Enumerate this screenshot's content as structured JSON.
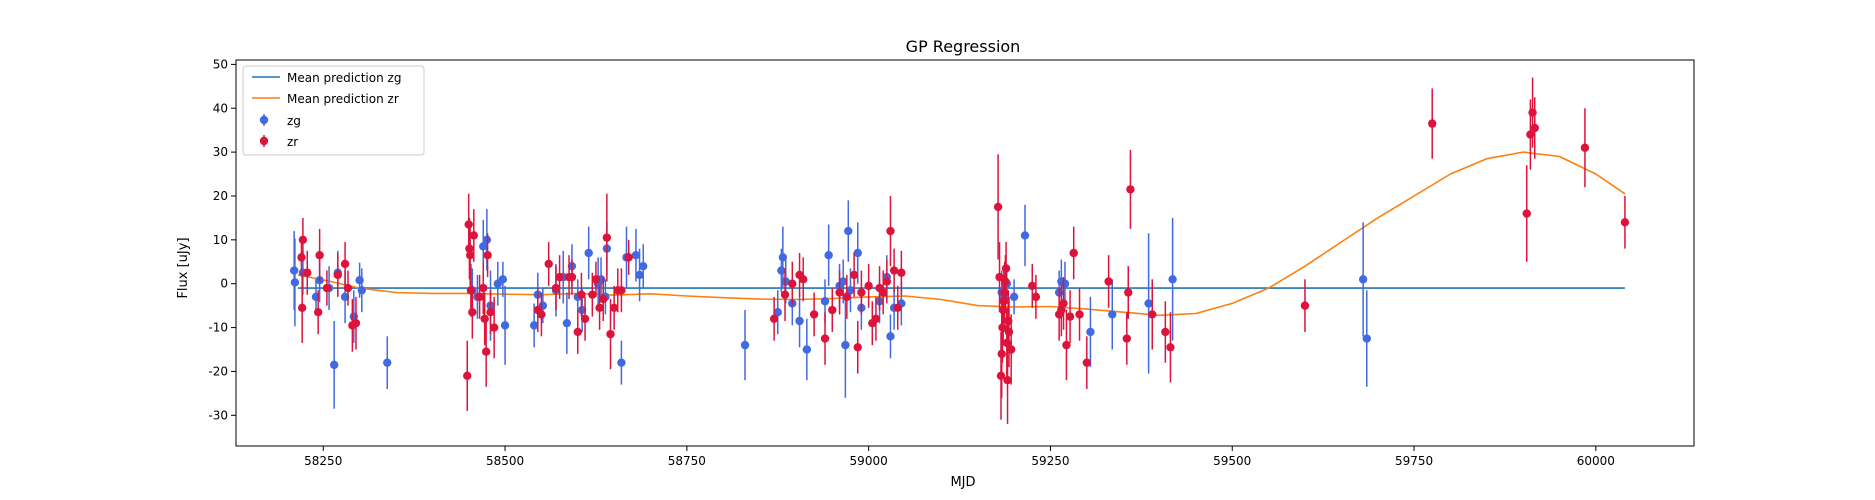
{
  "chart_data": {
    "type": "scatter",
    "title": "GP Regression",
    "xlabel": "MJD",
    "ylabel": "Flux [uJy]",
    "xlim": [
      58130,
      60135
    ],
    "ylim": [
      -37,
      51
    ],
    "xticks": [
      58250,
      58500,
      58750,
      59000,
      59250,
      59500,
      59750,
      60000
    ],
    "yticks": [
      -30,
      -20,
      -10,
      0,
      10,
      20,
      30,
      40,
      50
    ],
    "grid": false,
    "legend_position": "top-left",
    "legend": [
      "Mean prediction zg",
      "Mean prediction zr",
      "zg",
      "zr"
    ],
    "colors": {
      "mean_zg": "#1f77b4",
      "mean_zr": "#ff7f0e",
      "zg": "#4169e1",
      "zr": "#dc143c"
    },
    "series": [
      {
        "name": "Mean prediction zg",
        "kind": "line",
        "x": [
          58215,
          60040
        ],
        "y": [
          -1,
          -1
        ]
      },
      {
        "name": "Mean prediction zr",
        "kind": "line",
        "x": [
          58215,
          58260,
          58300,
          58350,
          58400,
          58450,
          58500,
          58550,
          58600,
          58650,
          58700,
          58750,
          58800,
          58850,
          58900,
          58950,
          59000,
          59050,
          59100,
          59150,
          59200,
          59250,
          59300,
          59350,
          59400,
          59450,
          59500,
          59550,
          59600,
          59650,
          59700,
          59750,
          59800,
          59850,
          59900,
          59950,
          60000,
          60040
        ],
        "y": [
          2,
          0.5,
          -1,
          -2,
          -2.2,
          -2.2,
          -2.4,
          -2.5,
          -2.2,
          -2.6,
          -2.3,
          -2.8,
          -3.2,
          -3.5,
          -3.6,
          -3.4,
          -3.0,
          -2.8,
          -3.6,
          -5,
          -5.3,
          -5.2,
          -5.8,
          -6.5,
          -7.2,
          -6.8,
          -4.5,
          -1,
          4,
          9.5,
          15,
          20,
          25,
          28.5,
          30,
          29,
          25,
          20.5
        ]
      },
      {
        "name": "zg",
        "kind": "errorbar",
        "points": [
          [
            58210,
            3,
            9
          ],
          [
            58211,
            0.3,
            10
          ],
          [
            58222,
            2.5,
            5
          ],
          [
            58240,
            -3,
            4
          ],
          [
            58245,
            0.8,
            5
          ],
          [
            58258,
            -1,
            5
          ],
          [
            58265,
            -18.5,
            10
          ],
          [
            58270,
            2.5,
            5
          ],
          [
            58280,
            -3,
            6
          ],
          [
            58292,
            -7.5,
            6
          ],
          [
            58300,
            0.8,
            4
          ],
          [
            58303,
            -1.5,
            5
          ],
          [
            58338,
            -18,
            6
          ],
          [
            58455,
            -1.5,
            5
          ],
          [
            58462,
            -3,
            5
          ],
          [
            58470,
            8.5,
            6
          ],
          [
            58475,
            10,
            7
          ],
          [
            58480,
            -5,
            8
          ],
          [
            58490,
            0,
            5
          ],
          [
            58497,
            1,
            4
          ],
          [
            58500,
            -9.5,
            9
          ],
          [
            58540,
            -9.5,
            5
          ],
          [
            58545,
            -2.5,
            5
          ],
          [
            58552,
            -5,
            4
          ],
          [
            58570,
            -1.5,
            6
          ],
          [
            58580,
            1.5,
            6
          ],
          [
            58585,
            -9,
            7
          ],
          [
            58592,
            4,
            5
          ],
          [
            58600,
            -3,
            4
          ],
          [
            58606,
            -6,
            5
          ],
          [
            58615,
            7,
            6
          ],
          [
            58628,
            0,
            6
          ],
          [
            58632,
            1,
            5
          ],
          [
            58638,
            -3,
            4
          ],
          [
            58640,
            8,
            6
          ],
          [
            58660,
            -18,
            5
          ],
          [
            58667,
            6,
            7
          ],
          [
            58680,
            6.5,
            6
          ],
          [
            58685,
            2,
            6
          ],
          [
            58690,
            4,
            5
          ],
          [
            58830,
            -14,
            8
          ],
          [
            58875,
            -6.5,
            5
          ],
          [
            58880,
            3,
            5
          ],
          [
            58882,
            6,
            7
          ],
          [
            58886,
            0.5,
            5
          ],
          [
            58895,
            -4.5,
            5
          ],
          [
            58905,
            -8.5,
            6
          ],
          [
            58915,
            -15,
            7
          ],
          [
            58940,
            -4,
            5
          ],
          [
            58945,
            6.5,
            7
          ],
          [
            58960,
            -0.5,
            5
          ],
          [
            58965,
            0.5,
            5
          ],
          [
            58968,
            -14,
            12
          ],
          [
            58972,
            12,
            7
          ],
          [
            58975,
            -1.5,
            5
          ],
          [
            58985,
            7,
            7
          ],
          [
            58990,
            -5.5,
            5
          ],
          [
            59015,
            -4,
            5
          ],
          [
            59025,
            1.5,
            5
          ],
          [
            59030,
            -12,
            5
          ],
          [
            59035,
            -5.5,
            5
          ],
          [
            59045,
            -4.5,
            5
          ],
          [
            59183,
            -2,
            5
          ],
          [
            59186,
            -3.5,
            4
          ],
          [
            59190,
            0,
            4
          ],
          [
            59200,
            -3,
            4
          ],
          [
            59215,
            11,
            7
          ],
          [
            59262,
            -2,
            5
          ],
          [
            59265,
            0.5,
            5
          ],
          [
            59270,
            0,
            5
          ],
          [
            59305,
            -11,
            8
          ],
          [
            59335,
            -7,
            8
          ],
          [
            59385,
            -4.5,
            16
          ],
          [
            59418,
            1,
            14
          ],
          [
            59680,
            1,
            13
          ],
          [
            59685,
            -12.5,
            11
          ]
        ]
      },
      {
        "name": "zr",
        "kind": "errorbar",
        "points": [
          [
            58220,
            6,
            4
          ],
          [
            58221,
            -5.5,
            8
          ],
          [
            58222,
            10,
            5
          ],
          [
            58228,
            2.5,
            5
          ],
          [
            58243,
            -6.5,
            5
          ],
          [
            58245,
            6.5,
            6
          ],
          [
            58255,
            -1,
            4
          ],
          [
            58270,
            2,
            5
          ],
          [
            58280,
            4.5,
            5
          ],
          [
            58284,
            -1,
            4
          ],
          [
            58290,
            -9.5,
            6
          ],
          [
            58295,
            -9,
            6
          ],
          [
            58448,
            -21,
            8
          ],
          [
            58450,
            13.5,
            7
          ],
          [
            58451,
            8,
            7
          ],
          [
            58452,
            6.5,
            7
          ],
          [
            58453,
            -1.5,
            6
          ],
          [
            58455,
            -6.5,
            6
          ],
          [
            58457,
            11,
            6
          ],
          [
            58465,
            -3,
            5
          ],
          [
            58470,
            -1,
            6
          ],
          [
            58472,
            -8,
            6
          ],
          [
            58474,
            -15.5,
            8
          ],
          [
            58476,
            6.5,
            5
          ],
          [
            58480,
            -6.5,
            5
          ],
          [
            58485,
            -10,
            7
          ],
          [
            58545,
            -6,
            5
          ],
          [
            58550,
            -7,
            5
          ],
          [
            58560,
            4.5,
            5
          ],
          [
            58570,
            -1,
            5
          ],
          [
            58575,
            1.5,
            5
          ],
          [
            58588,
            1.5,
            5
          ],
          [
            58592,
            1.5,
            4
          ],
          [
            58600,
            -11,
            5
          ],
          [
            58605,
            -2.5,
            5
          ],
          [
            58610,
            -8,
            5
          ],
          [
            58620,
            -2.5,
            5
          ],
          [
            58625,
            1,
            4
          ],
          [
            58630,
            -5.5,
            5
          ],
          [
            58635,
            -3.5,
            5
          ],
          [
            58640,
            10.5,
            10
          ],
          [
            58645,
            -11.5,
            8
          ],
          [
            58650,
            -5.5,
            5
          ],
          [
            58655,
            -1.5,
            5
          ],
          [
            58660,
            -1.5,
            5
          ],
          [
            58670,
            6,
            4
          ],
          [
            58870,
            -8,
            5
          ],
          [
            58885,
            -2.5,
            6
          ],
          [
            58895,
            0,
            5
          ],
          [
            58905,
            2,
            5
          ],
          [
            58910,
            1,
            5
          ],
          [
            58925,
            -7,
            5
          ],
          [
            58940,
            -12.5,
            6
          ],
          [
            58950,
            -6,
            5
          ],
          [
            58960,
            -2,
            5
          ],
          [
            58970,
            -3,
            5
          ],
          [
            58980,
            2,
            5
          ],
          [
            58985,
            -14.5,
            6
          ],
          [
            58990,
            -2,
            5
          ],
          [
            59000,
            -0.5,
            5
          ],
          [
            59005,
            -9,
            5
          ],
          [
            59010,
            -8,
            5
          ],
          [
            59015,
            -1,
            5
          ],
          [
            59020,
            -2,
            5
          ],
          [
            59025,
            0.5,
            5
          ],
          [
            59030,
            12,
            8
          ],
          [
            59035,
            3,
            5
          ],
          [
            59040,
            -5.5,
            5
          ],
          [
            59045,
            2.5,
            5
          ],
          [
            59178,
            17.5,
            12
          ],
          [
            59180,
            1.5,
            8
          ],
          [
            59182,
            -21,
            10
          ],
          [
            59183,
            -16,
            10
          ],
          [
            59184,
            -10,
            8
          ],
          [
            59185,
            -6,
            8
          ],
          [
            59186,
            -4,
            7
          ],
          [
            59187,
            -2,
            7
          ],
          [
            59188,
            0.5,
            6
          ],
          [
            59189,
            3.5,
            6
          ],
          [
            59190,
            -13.5,
            8
          ],
          [
            59191,
            -22,
            10
          ],
          [
            59192,
            -8.5,
            7
          ],
          [
            59193,
            -11,
            8
          ],
          [
            59196,
            -15,
            8
          ],
          [
            59225,
            -0.5,
            5
          ],
          [
            59230,
            -3,
            5
          ],
          [
            59262,
            -7,
            6
          ],
          [
            59265,
            -6,
            6
          ],
          [
            59268,
            -4.5,
            6
          ],
          [
            59272,
            -14,
            8
          ],
          [
            59277,
            -7.5,
            6
          ],
          [
            59282,
            7,
            6
          ],
          [
            59290,
            -7,
            6
          ],
          [
            59300,
            -18,
            6
          ],
          [
            59330,
            0.5,
            6
          ],
          [
            59355,
            -12.5,
            6
          ],
          [
            59357,
            -2,
            6
          ],
          [
            59360,
            21.5,
            9
          ],
          [
            59390,
            -7,
            8
          ],
          [
            59408,
            -11,
            7
          ],
          [
            59415,
            -14.5,
            8
          ],
          [
            59600,
            -5,
            6
          ],
          [
            59775,
            36.5,
            8
          ],
          [
            59905,
            16,
            11
          ],
          [
            59910,
            34,
            8
          ],
          [
            59913,
            39,
            8
          ],
          [
            59916,
            35.5,
            7
          ],
          [
            59985,
            31,
            9
          ],
          [
            60040,
            14,
            6
          ]
        ]
      }
    ]
  }
}
